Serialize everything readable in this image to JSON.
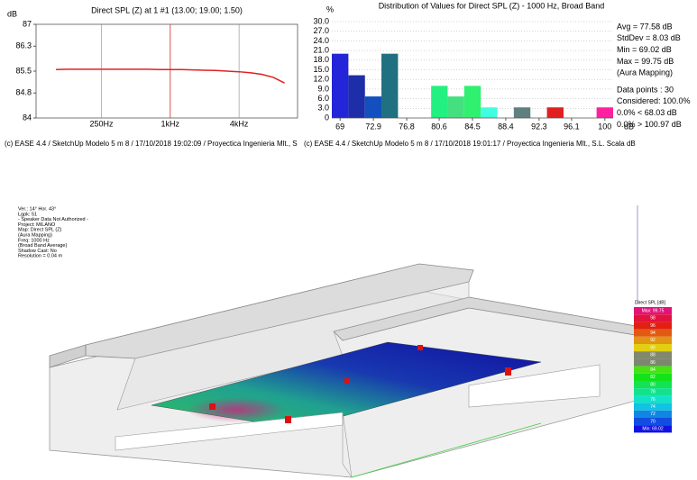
{
  "chart_data": [
    {
      "type": "line",
      "title": "Direct SPL (Z) at 1 #1 (13.00; 19.00; 1.50)",
      "y_label": "dB",
      "x": [
        100,
        125,
        160,
        200,
        250,
        315,
        400,
        500,
        630,
        800,
        1000,
        1250,
        1600,
        2000,
        2500,
        3150,
        4000,
        5000,
        6300,
        8000,
        10000
      ],
      "values": [
        85.55,
        85.56,
        85.56,
        85.56,
        85.56,
        85.56,
        85.56,
        85.56,
        85.56,
        85.55,
        85.55,
        85.55,
        85.54,
        85.53,
        85.52,
        85.5,
        85.48,
        85.45,
        85.4,
        85.3,
        85.12
      ],
      "color": "#e02020",
      "xscale": "log",
      "xlim": [
        67,
        13000
      ],
      "xticks": [
        {
          "value": 250,
          "label": "250Hz"
        },
        {
          "value": 1000,
          "label": "1kHz"
        },
        {
          "value": 4000,
          "label": "4kHz"
        }
      ],
      "ylim": [
        84,
        87
      ],
      "yticks": [
        84,
        84.8,
        85.5,
        86.3,
        87
      ],
      "grid": true,
      "cursor_x": 1000,
      "footer": "(c) EASE 4.4  / SketchUp Modelo 5 m 8  / 17/10/2018 19:02:09 / Proyectica Ingenieria Mlt., S"
    },
    {
      "type": "histogram",
      "title": "Distribution of Values for Direct SPL (Z) - 1000 Hz, Broad Band",
      "y_label": "%",
      "x_label": "dB",
      "bins": [
        68.03,
        69.97,
        71.91,
        73.84,
        75.78,
        77.72,
        79.66,
        81.59,
        83.53,
        85.47,
        87.41,
        89.34,
        91.28,
        93.22,
        95.16,
        97.09,
        99.03,
        100.97
      ],
      "values": [
        20,
        13.3,
        6.7,
        20,
        0,
        0,
        10,
        6.7,
        10,
        3.3,
        0,
        3.3,
        0,
        3.3,
        0,
        0,
        3.3
      ],
      "colors": [
        "#2424d8",
        "#1e2ea8",
        "#1250c0",
        "#1f7080",
        "#20a080",
        "#20c080",
        "#22f080",
        "#44e080",
        "#30f070",
        "#40ffe0",
        "#50c0b0",
        "#608080",
        "#a06060",
        "#e02020",
        "#f02060",
        "#f82090",
        "#ff20a0"
      ],
      "xlim": [
        68.03,
        100.97
      ],
      "xticks": [
        69,
        72.9,
        76.8,
        80.6,
        84.5,
        88.4,
        92.3,
        96.1,
        100
      ],
      "ylim": [
        0,
        30
      ],
      "yticks": [
        0,
        {
          "value": 3,
          "label": "3.0"
        },
        {
          "value": 6,
          "label": "6.0"
        },
        {
          "value": 9,
          "label": "9.0"
        },
        {
          "value": 12,
          "label": "12.0"
        },
        {
          "value": 15,
          "label": "15.0"
        },
        {
          "value": 18,
          "label": "18.0"
        },
        {
          "value": 21,
          "label": "21.0"
        },
        {
          "value": 24,
          "label": "24.0"
        },
        {
          "value": 27,
          "label": "27.0"
        },
        {
          "value": 30,
          "label": "30.0"
        }
      ],
      "grid": true,
      "stats": [
        "Avg = 77.58 dB",
        "StdDev = 8.03 dB",
        "Min = 69.02 dB",
        "Max = 99.75 dB",
        "(Aura Mapping)",
        "Data points : 30",
        "Considered: 100.0%",
        "0.0% < 68.03 dB",
        "0.0% > 100.97 dB"
      ],
      "footer": "(c) EASE 4.4  / SketchUp Modelo 5 m 8  / 17/10/2018 19:01:17 / Proyectica Ingenieria Mlt., S.L. Scala dB"
    }
  ],
  "scene": {
    "info": [
      "Ver.: 14°   Hor. 43°",
      "Lgpk: 51",
      "- Speaker Data Not Authorized -",
      "Project: MILANO",
      "Map: Direct SPL (Z)",
      "(Aura Mapping)",
      "Freq: 1000 Hz",
      "(Broad Band Average)",
      "Shadow Cast: No",
      "Resolution =    0.04 m"
    ],
    "legend_title": "Direct SPL [dB]",
    "legend_labels": [
      "Max: 99.75",
      "98",
      "96",
      "94",
      "92",
      "90",
      "88",
      "86",
      "84",
      "82",
      "80",
      "78",
      "76",
      "74",
      "72",
      "70",
      "Min: 69.02"
    ]
  }
}
